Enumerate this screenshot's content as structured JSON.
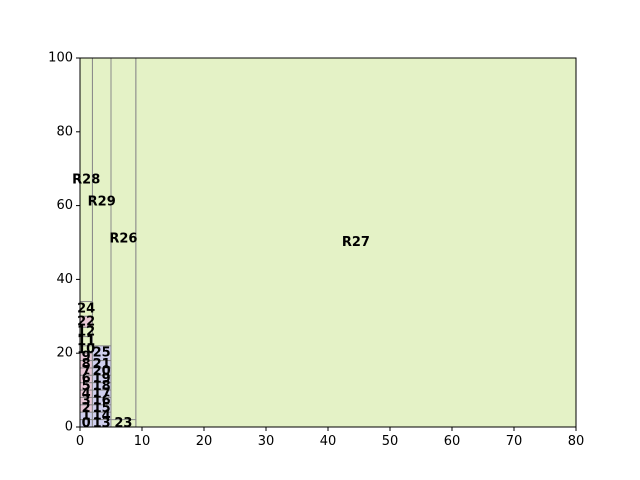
{
  "chart_data": {
    "type": "treemap",
    "title": "",
    "xlabel": "",
    "ylabel": "",
    "xlim": [
      0,
      80
    ],
    "ylim": [
      0,
      100
    ],
    "grid": false,
    "x_ticks": [
      "0",
      "10",
      "20",
      "30",
      "40",
      "50",
      "60",
      "70",
      "80"
    ],
    "y_ticks": [
      "0",
      "20",
      "40",
      "60",
      "80",
      "100"
    ],
    "rectangles": [
      {
        "label": "R27",
        "x0": 9,
        "y0": 0,
        "x1": 80,
        "y1": 100,
        "color": "#e4f2c6",
        "label_x": 44.5,
        "label_y": 50
      },
      {
        "label": "R26",
        "x0": 5,
        "y0": 0,
        "x1": 9,
        "y1": 100,
        "color": "#e4f2c6",
        "label_x": 7,
        "label_y": 51
      },
      {
        "label": "R29",
        "x0": 2,
        "y0": 0,
        "x1": 5,
        "y1": 100,
        "color": "#e4f2c6",
        "label_x": 3.5,
        "label_y": 61
      },
      {
        "label": "R28",
        "x0": 0,
        "y0": 34,
        "x1": 2,
        "y1": 100,
        "color": "#e4f2c6",
        "label_x": 1,
        "label_y": 67
      },
      {
        "label": "24",
        "x0": 0,
        "y0": 30,
        "x1": 2,
        "y1": 34,
        "color": "#e4f2c6",
        "label_x": 1,
        "label_y": 32
      },
      {
        "label": "22",
        "x0": 0,
        "y0": 27,
        "x1": 2,
        "y1": 30,
        "color": "#e8c7d6",
        "label_x": 1,
        "label_y": 28.5
      },
      {
        "label": "12",
        "x0": 0,
        "y0": 24.5,
        "x1": 2,
        "y1": 27,
        "color": "#e4f2c6",
        "label_x": 1,
        "label_y": 25.8
      },
      {
        "label": "11",
        "x0": 0,
        "y0": 22,
        "x1": 2,
        "y1": 24.5,
        "color": "#e4f2c6",
        "label_x": 1,
        "label_y": 23.2
      },
      {
        "label": "10",
        "x0": 0,
        "y0": 20,
        "x1": 2,
        "y1": 22,
        "color": "#e4f2c6",
        "label_x": 1,
        "label_y": 21
      },
      {
        "label": "9",
        "x0": 0,
        "y0": 18,
        "x1": 2,
        "y1": 20,
        "color": "#e8c7d6",
        "label_x": 1,
        "label_y": 19
      },
      {
        "label": "8",
        "x0": 0,
        "y0": 16,
        "x1": 2,
        "y1": 18,
        "color": "#e8c7d6",
        "label_x": 1,
        "label_y": 17
      },
      {
        "label": "7",
        "x0": 0,
        "y0": 14,
        "x1": 2,
        "y1": 16,
        "color": "#e8c7d6",
        "label_x": 1,
        "label_y": 15
      },
      {
        "label": "6",
        "x0": 0,
        "y0": 12,
        "x1": 2,
        "y1": 14,
        "color": "#e8c7d6",
        "label_x": 1,
        "label_y": 13
      },
      {
        "label": "5",
        "x0": 0,
        "y0": 10,
        "x1": 2,
        "y1": 12,
        "color": "#e8c7d6",
        "label_x": 1,
        "label_y": 11
      },
      {
        "label": "4",
        "x0": 0,
        "y0": 8,
        "x1": 2,
        "y1": 10,
        "color": "#e8c7d6",
        "label_x": 1,
        "label_y": 9
      },
      {
        "label": "3",
        "x0": 0,
        "y0": 6,
        "x1": 2,
        "y1": 8,
        "color": "#e8c7d6",
        "label_x": 1,
        "label_y": 7
      },
      {
        "label": "2",
        "x0": 0,
        "y0": 4,
        "x1": 2,
        "y1": 6,
        "color": "#e8c7d6",
        "label_x": 1,
        "label_y": 5
      },
      {
        "label": "1",
        "x0": 0,
        "y0": 2,
        "x1": 2,
        "y1": 4,
        "color": "#cfcfee",
        "label_x": 1,
        "label_y": 3
      },
      {
        "label": "0",
        "x0": 0,
        "y0": 0,
        "x1": 2,
        "y1": 2,
        "color": "#cfcfee",
        "label_x": 1,
        "label_y": 1
      },
      {
        "label": "25",
        "x0": 2,
        "y0": 18,
        "x1": 5,
        "y1": 22,
        "color": "#cfcfee",
        "label_x": 3.5,
        "label_y": 20
      },
      {
        "label": "21",
        "x0": 2,
        "y0": 16,
        "x1": 5,
        "y1": 18,
        "color": "#cfcfee",
        "label_x": 3.5,
        "label_y": 17
      },
      {
        "label": "20",
        "x0": 2,
        "y0": 14,
        "x1": 5,
        "y1": 16,
        "color": "#cfcfee",
        "label_x": 3.5,
        "label_y": 15
      },
      {
        "label": "19",
        "x0": 2,
        "y0": 12,
        "x1": 5,
        "y1": 14,
        "color": "#cfcfee",
        "label_x": 3.5,
        "label_y": 13
      },
      {
        "label": "18",
        "x0": 2,
        "y0": 10,
        "x1": 5,
        "y1": 12,
        "color": "#cfcfee",
        "label_x": 3.5,
        "label_y": 11
      },
      {
        "label": "17",
        "x0": 2,
        "y0": 8,
        "x1": 5,
        "y1": 10,
        "color": "#cfcfee",
        "label_x": 3.5,
        "label_y": 9
      },
      {
        "label": "16",
        "x0": 2,
        "y0": 6,
        "x1": 5,
        "y1": 8,
        "color": "#cfcfee",
        "label_x": 3.5,
        "label_y": 7
      },
      {
        "label": "15",
        "x0": 2,
        "y0": 4,
        "x1": 5,
        "y1": 6,
        "color": "#cfcfee",
        "label_x": 3.5,
        "label_y": 5
      },
      {
        "label": "14",
        "x0": 2,
        "y0": 2,
        "x1": 5,
        "y1": 4,
        "color": "#cfcfee",
        "label_x": 3.5,
        "label_y": 3
      },
      {
        "label": "13",
        "x0": 2,
        "y0": 0,
        "x1": 5,
        "y1": 2,
        "color": "#cfcfee",
        "label_x": 3.5,
        "label_y": 1
      },
      {
        "label": "23",
        "x0": 5,
        "y0": 0,
        "x1": 9,
        "y1": 2,
        "color": "#e4f2c6",
        "label_x": 7,
        "label_y": 1
      }
    ]
  }
}
